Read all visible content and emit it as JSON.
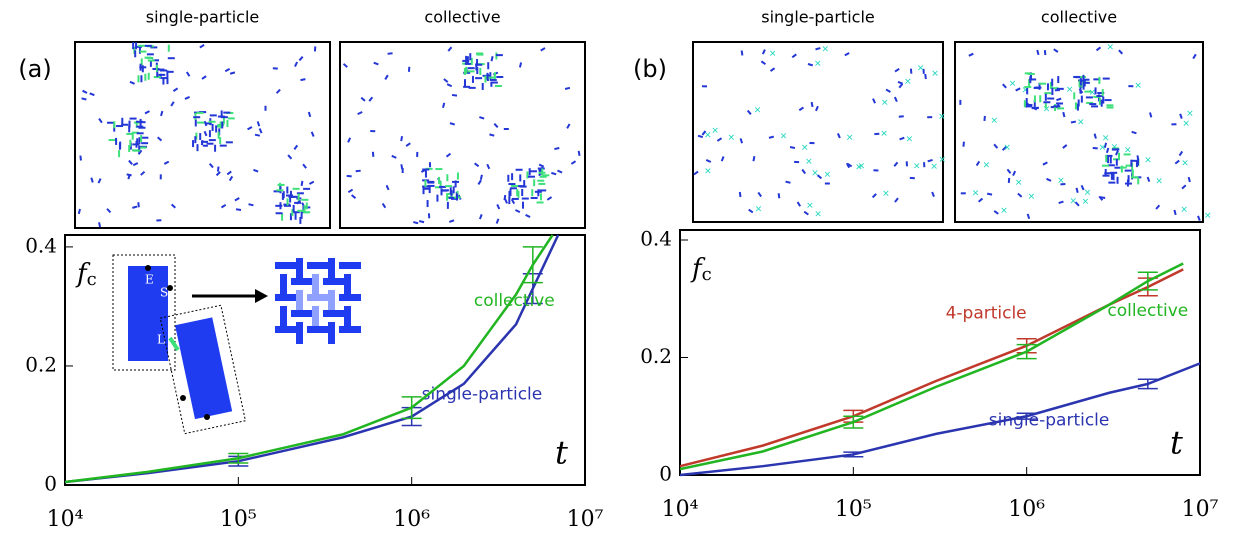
{
  "chart_data": [
    {
      "type": "line",
      "panel_label": "(a)",
      "snapshot_titles": [
        "single-particle",
        "collective"
      ],
      "y_label": "f",
      "y_label_subscript": "c",
      "x_label": "t",
      "xscale": "log",
      "xlim": [
        10000,
        10000000
      ],
      "ylim": [
        0,
        0.42
      ],
      "xticks": [
        {
          "value": 10000,
          "label": "10⁴"
        },
        {
          "value": 100000,
          "label": "10⁵"
        },
        {
          "value": 1000000,
          "label": "10⁶"
        },
        {
          "value": 10000000,
          "label": "10⁷"
        }
      ],
      "yticks": [
        0,
        0.2,
        0.4
      ],
      "inset_labels": [
        "E",
        "S",
        "L"
      ],
      "series": [
        {
          "name": "single-particle",
          "color": "#2b35b0",
          "x": [
            10000,
            30000,
            100000,
            200000,
            400000,
            1000000,
            2000000,
            4000000,
            5000000,
            7000000
          ],
          "values": [
            0.005,
            0.02,
            0.04,
            0.06,
            0.08,
            0.115,
            0.17,
            0.27,
            0.33,
            0.42
          ],
          "errors": [
            null,
            null,
            0.008,
            null,
            null,
            0.015,
            null,
            null,
            0.025,
            null
          ]
        },
        {
          "name": "collective",
          "color": "#22b522",
          "x": [
            10000,
            30000,
            100000,
            200000,
            400000,
            1000000,
            2000000,
            4000000,
            5000000,
            6500000
          ],
          "values": [
            0.005,
            0.022,
            0.045,
            0.065,
            0.085,
            0.13,
            0.2,
            0.32,
            0.37,
            0.42
          ],
          "errors": [
            null,
            null,
            0.008,
            null,
            null,
            0.018,
            null,
            null,
            0.03,
            null
          ]
        }
      ]
    },
    {
      "type": "line",
      "panel_label": "(b)",
      "snapshot_titles": [
        "single-particle",
        "collective"
      ],
      "y_label": "f",
      "y_label_subscript": "c",
      "x_label": "t",
      "xscale": "log",
      "xlim": [
        10000,
        10000000
      ],
      "ylim": [
        0,
        0.417
      ],
      "xticks": [
        {
          "value": 10000,
          "label": "10⁴"
        },
        {
          "value": 100000,
          "label": "10⁵"
        },
        {
          "value": 1000000,
          "label": "10⁶"
        },
        {
          "value": 10000000,
          "label": "10⁷"
        }
      ],
      "yticks": [
        0,
        0.2,
        0.4
      ],
      "series": [
        {
          "name": "4-particle",
          "color": "#c0392b",
          "x": [
            10000,
            30000,
            100000,
            300000,
            1000000,
            3000000,
            5000000,
            8000000
          ],
          "values": [
            0.015,
            0.05,
            0.1,
            0.16,
            0.22,
            0.29,
            0.32,
            0.35
          ],
          "errors": [
            null,
            null,
            0.01,
            null,
            0.012,
            null,
            0.015,
            null
          ]
        },
        {
          "name": "collective",
          "color": "#22b522",
          "x": [
            10000,
            30000,
            100000,
            300000,
            1000000,
            3000000,
            5000000,
            8000000
          ],
          "values": [
            0.01,
            0.04,
            0.09,
            0.15,
            0.21,
            0.29,
            0.33,
            0.36
          ],
          "errors": [
            null,
            null,
            0.01,
            null,
            0.012,
            null,
            0.015,
            null
          ]
        },
        {
          "name": "single-particle",
          "color": "#2b35b0",
          "x": [
            10000,
            30000,
            100000,
            300000,
            1000000,
            3000000,
            5000000,
            10000000
          ],
          "values": [
            0.0,
            0.015,
            0.035,
            0.07,
            0.1,
            0.14,
            0.155,
            0.19
          ],
          "errors": [
            null,
            null,
            0.004,
            null,
            0.005,
            null,
            0.008,
            null
          ]
        }
      ]
    }
  ]
}
